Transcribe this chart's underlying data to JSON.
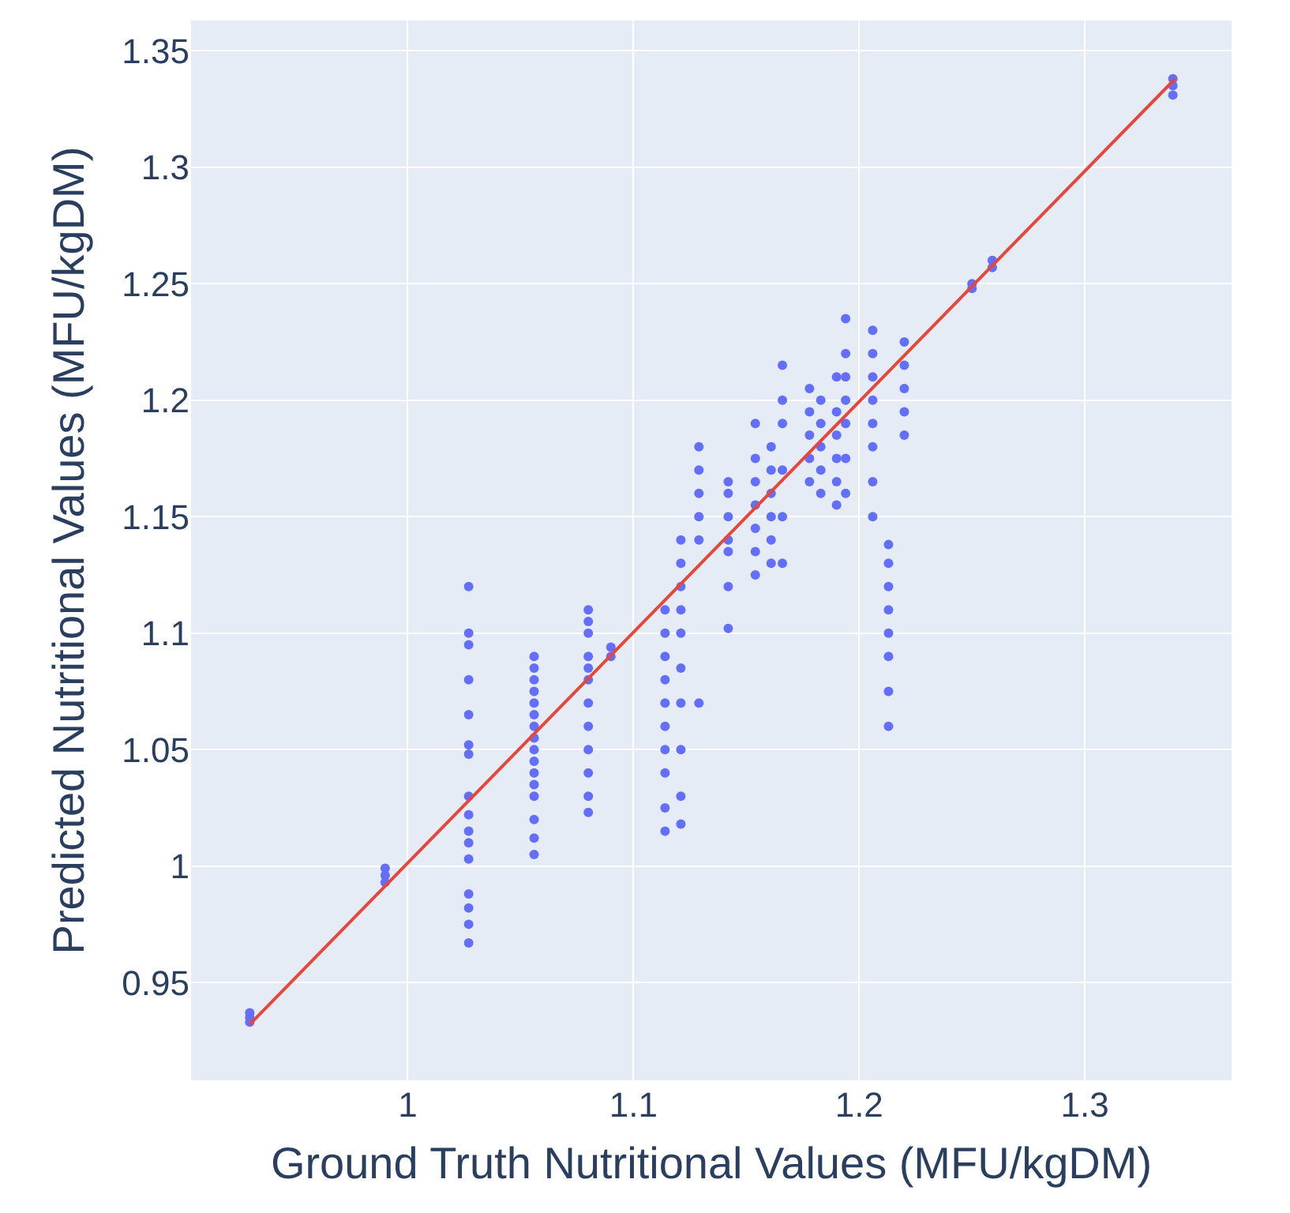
{
  "chart_data": {
    "type": "scatter",
    "xlabel": "Ground Truth Nutritional Values (MFU/kgDM)",
    "ylabel": "Predicted Nutritional Values (MFU/kgDM)",
    "xlim": [
      0.904,
      1.365
    ],
    "xticks": [
      1,
      1.1,
      1.2,
      1.3
    ],
    "ylim": [
      0.908,
      1.363
    ],
    "yticks": [
      0.95,
      1,
      1.05,
      1.1,
      1.15,
      1.2,
      1.25,
      1.3,
      1.35
    ],
    "grid": true,
    "series": [
      {
        "marker": "circle",
        "color": "#636efa",
        "x": [
          0.93,
          0.93,
          0.93,
          0.99,
          0.99,
          0.99,
          1.027,
          1.027,
          1.027,
          1.027,
          1.027,
          1.027,
          1.027,
          1.027,
          1.027,
          1.027,
          1.027,
          1.027,
          1.027,
          1.027,
          1.027,
          1.027,
          1.056,
          1.056,
          1.056,
          1.056,
          1.056,
          1.056,
          1.056,
          1.056,
          1.056,
          1.056,
          1.056,
          1.056,
          1.056,
          1.056,
          1.056,
          1.056,
          1.08,
          1.08,
          1.08,
          1.08,
          1.08,
          1.08,
          1.08,
          1.08,
          1.08,
          1.08,
          1.08,
          1.08,
          1.09,
          1.09,
          1.114,
          1.114,
          1.114,
          1.114,
          1.114,
          1.114,
          1.114,
          1.114,
          1.114,
          1.114,
          1.121,
          1.121,
          1.121,
          1.121,
          1.121,
          1.121,
          1.121,
          1.121,
          1.121,
          1.121,
          1.129,
          1.129,
          1.129,
          1.129,
          1.129,
          1.129,
          1.142,
          1.142,
          1.142,
          1.142,
          1.142,
          1.142,
          1.142,
          1.154,
          1.154,
          1.154,
          1.154,
          1.154,
          1.154,
          1.154,
          1.161,
          1.161,
          1.161,
          1.161,
          1.161,
          1.161,
          1.166,
          1.166,
          1.166,
          1.166,
          1.166,
          1.166,
          1.178,
          1.178,
          1.178,
          1.178,
          1.178,
          1.183,
          1.183,
          1.183,
          1.183,
          1.183,
          1.19,
          1.19,
          1.19,
          1.19,
          1.19,
          1.19,
          1.194,
          1.194,
          1.194,
          1.194,
          1.194,
          1.194,
          1.194,
          1.206,
          1.206,
          1.206,
          1.206,
          1.206,
          1.206,
          1.206,
          1.206,
          1.213,
          1.213,
          1.213,
          1.213,
          1.213,
          1.213,
          1.213,
          1.213,
          1.22,
          1.22,
          1.22,
          1.22,
          1.22,
          1.25,
          1.25,
          1.259,
          1.259,
          1.339,
          1.339,
          1.339
        ],
        "values": [
          0.933,
          0.935,
          0.937,
          0.993,
          0.996,
          0.999,
          1.12,
          1.1,
          1.095,
          1.08,
          1.065,
          1.052,
          1.048,
          1.03,
          1.022,
          1.015,
          1.01,
          1.003,
          0.988,
          0.982,
          0.975,
          0.967,
          1.005,
          1.012,
          1.02,
          1.03,
          1.035,
          1.04,
          1.045,
          1.05,
          1.055,
          1.06,
          1.065,
          1.07,
          1.075,
          1.08,
          1.085,
          1.09,
          1.023,
          1.03,
          1.04,
          1.05,
          1.06,
          1.07,
          1.08,
          1.085,
          1.09,
          1.1,
          1.105,
          1.11,
          1.09,
          1.094,
          1.015,
          1.025,
          1.04,
          1.05,
          1.06,
          1.07,
          1.08,
          1.09,
          1.1,
          1.11,
          1.018,
          1.03,
          1.05,
          1.07,
          1.085,
          1.1,
          1.11,
          1.12,
          1.13,
          1.14,
          1.07,
          1.14,
          1.15,
          1.16,
          1.17,
          1.18,
          1.102,
          1.12,
          1.135,
          1.14,
          1.15,
          1.16,
          1.165,
          1.125,
          1.135,
          1.145,
          1.155,
          1.165,
          1.175,
          1.19,
          1.13,
          1.14,
          1.15,
          1.16,
          1.17,
          1.18,
          1.13,
          1.15,
          1.17,
          1.19,
          1.2,
          1.215,
          1.165,
          1.175,
          1.185,
          1.195,
          1.205,
          1.16,
          1.17,
          1.18,
          1.19,
          1.2,
          1.155,
          1.165,
          1.175,
          1.185,
          1.195,
          1.21,
          1.16,
          1.175,
          1.19,
          1.2,
          1.21,
          1.22,
          1.235,
          1.15,
          1.165,
          1.18,
          1.19,
          1.2,
          1.21,
          1.22,
          1.23,
          1.06,
          1.075,
          1.09,
          1.1,
          1.11,
          1.12,
          1.13,
          1.138,
          1.185,
          1.195,
          1.205,
          1.215,
          1.225,
          1.248,
          1.25,
          1.257,
          1.26,
          1.331,
          1.335,
          1.338
        ]
      },
      {
        "type": "line",
        "color": "#e5473a",
        "x": [
          0.93,
          1.34
        ],
        "values": [
          0.932,
          1.338
        ]
      }
    ]
  }
}
